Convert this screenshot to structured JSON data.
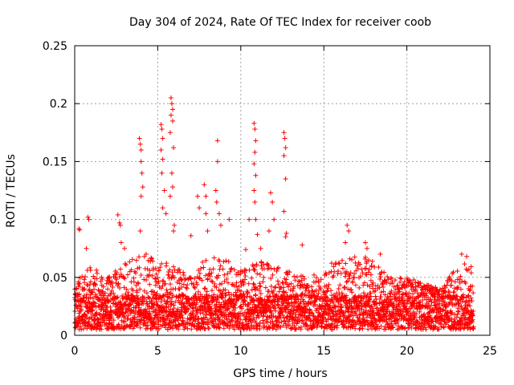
{
  "chart_data": {
    "type": "scatter",
    "title": "Day 304 of 2024, Rate Of TEC Index for receiver coob",
    "xlabel": "GPS time / hours",
    "ylabel": "ROTI / TECUs",
    "xlim": [
      0,
      25
    ],
    "ylim": [
      0,
      0.25
    ],
    "xticks": [
      0,
      5,
      10,
      15,
      20,
      25
    ],
    "xtick_labels": [
      "0",
      "5",
      "10",
      "15",
      "20",
      "25"
    ],
    "yticks": [
      0,
      0.05,
      0.1,
      0.15,
      0.2,
      0.25
    ],
    "ytick_labels": [
      "0",
      "0.05",
      "0.1",
      "0.15",
      "0.2",
      "0.25"
    ],
    "grid": true,
    "marker": "+",
    "color": "#ff0000",
    "baseline_band": {
      "x_range": [
        0,
        24
      ],
      "y_low": 0.005,
      "y_high": 0.035
    },
    "envelope": {
      "x": [
        0,
        1,
        2,
        3,
        4,
        5,
        6,
        7,
        8,
        9,
        10,
        11,
        12,
        13,
        14,
        15,
        16,
        17,
        18,
        19,
        20,
        21,
        22,
        23,
        24
      ],
      "y": [
        0.045,
        0.06,
        0.05,
        0.065,
        0.07,
        0.065,
        0.06,
        0.05,
        0.07,
        0.065,
        0.06,
        0.065,
        0.06,
        0.055,
        0.05,
        0.06,
        0.065,
        0.07,
        0.065,
        0.05,
        0.05,
        0.045,
        0.04,
        0.06,
        0.065
      ]
    },
    "spike_points": [
      {
        "x": 0.25,
        "y": 0.092
      },
      {
        "x": 0.3,
        "y": 0.091
      },
      {
        "x": 0.8,
        "y": 0.102
      },
      {
        "x": 0.85,
        "y": 0.1
      },
      {
        "x": 0.7,
        "y": 0.075
      },
      {
        "x": 2.6,
        "y": 0.104
      },
      {
        "x": 2.7,
        "y": 0.097
      },
      {
        "x": 2.75,
        "y": 0.095
      },
      {
        "x": 2.8,
        "y": 0.08
      },
      {
        "x": 3.0,
        "y": 0.075
      },
      {
        "x": 3.9,
        "y": 0.17
      },
      {
        "x": 3.95,
        "y": 0.165
      },
      {
        "x": 4.0,
        "y": 0.16
      },
      {
        "x": 4.0,
        "y": 0.15
      },
      {
        "x": 4.05,
        "y": 0.14
      },
      {
        "x": 4.1,
        "y": 0.128
      },
      {
        "x": 4.0,
        "y": 0.12
      },
      {
        "x": 3.95,
        "y": 0.09
      },
      {
        "x": 4.3,
        "y": 0.07
      },
      {
        "x": 5.2,
        "y": 0.182
      },
      {
        "x": 5.25,
        "y": 0.178
      },
      {
        "x": 5.3,
        "y": 0.17
      },
      {
        "x": 5.2,
        "y": 0.16
      },
      {
        "x": 5.3,
        "y": 0.152
      },
      {
        "x": 5.25,
        "y": 0.14
      },
      {
        "x": 5.4,
        "y": 0.125
      },
      {
        "x": 5.3,
        "y": 0.11
      },
      {
        "x": 5.5,
        "y": 0.105
      },
      {
        "x": 5.8,
        "y": 0.205
      },
      {
        "x": 5.85,
        "y": 0.2
      },
      {
        "x": 5.9,
        "y": 0.195
      },
      {
        "x": 5.8,
        "y": 0.19
      },
      {
        "x": 5.9,
        "y": 0.185
      },
      {
        "x": 5.75,
        "y": 0.175
      },
      {
        "x": 5.95,
        "y": 0.162
      },
      {
        "x": 5.85,
        "y": 0.14
      },
      {
        "x": 5.9,
        "y": 0.128
      },
      {
        "x": 5.75,
        "y": 0.12
      },
      {
        "x": 6.0,
        "y": 0.095
      },
      {
        "x": 5.95,
        "y": 0.09
      },
      {
        "x": 7.0,
        "y": 0.086
      },
      {
        "x": 7.4,
        "y": 0.12
      },
      {
        "x": 7.5,
        "y": 0.11
      },
      {
        "x": 7.8,
        "y": 0.13
      },
      {
        "x": 7.9,
        "y": 0.12
      },
      {
        "x": 7.9,
        "y": 0.105
      },
      {
        "x": 8.0,
        "y": 0.09
      },
      {
        "x": 8.6,
        "y": 0.168
      },
      {
        "x": 8.6,
        "y": 0.15
      },
      {
        "x": 8.5,
        "y": 0.125
      },
      {
        "x": 8.55,
        "y": 0.115
      },
      {
        "x": 8.7,
        "y": 0.105
      },
      {
        "x": 8.8,
        "y": 0.095
      },
      {
        "x": 9.3,
        "y": 0.1
      },
      {
        "x": 10.3,
        "y": 0.074
      },
      {
        "x": 10.5,
        "y": 0.1
      },
      {
        "x": 10.8,
        "y": 0.183
      },
      {
        "x": 10.85,
        "y": 0.178
      },
      {
        "x": 10.9,
        "y": 0.168
      },
      {
        "x": 10.85,
        "y": 0.158
      },
      {
        "x": 10.8,
        "y": 0.148
      },
      {
        "x": 10.9,
        "y": 0.138
      },
      {
        "x": 10.8,
        "y": 0.125
      },
      {
        "x": 10.85,
        "y": 0.115
      },
      {
        "x": 10.9,
        "y": 0.1
      },
      {
        "x": 11.0,
        "y": 0.087
      },
      {
        "x": 11.2,
        "y": 0.075
      },
      {
        "x": 11.8,
        "y": 0.123
      },
      {
        "x": 11.9,
        "y": 0.115
      },
      {
        "x": 12.0,
        "y": 0.1
      },
      {
        "x": 11.7,
        "y": 0.09
      },
      {
        "x": 12.6,
        "y": 0.175
      },
      {
        "x": 12.65,
        "y": 0.17
      },
      {
        "x": 12.7,
        "y": 0.162
      },
      {
        "x": 12.6,
        "y": 0.155
      },
      {
        "x": 12.7,
        "y": 0.135
      },
      {
        "x": 12.6,
        "y": 0.107
      },
      {
        "x": 12.7,
        "y": 0.085
      },
      {
        "x": 12.75,
        "y": 0.088
      },
      {
        "x": 13.7,
        "y": 0.078
      },
      {
        "x": 16.4,
        "y": 0.095
      },
      {
        "x": 16.5,
        "y": 0.09
      },
      {
        "x": 16.3,
        "y": 0.08
      },
      {
        "x": 17.5,
        "y": 0.08
      },
      {
        "x": 17.6,
        "y": 0.075
      },
      {
        "x": 18.4,
        "y": 0.07
      },
      {
        "x": 23.3,
        "y": 0.07
      },
      {
        "x": 23.6,
        "y": 0.068
      }
    ]
  }
}
